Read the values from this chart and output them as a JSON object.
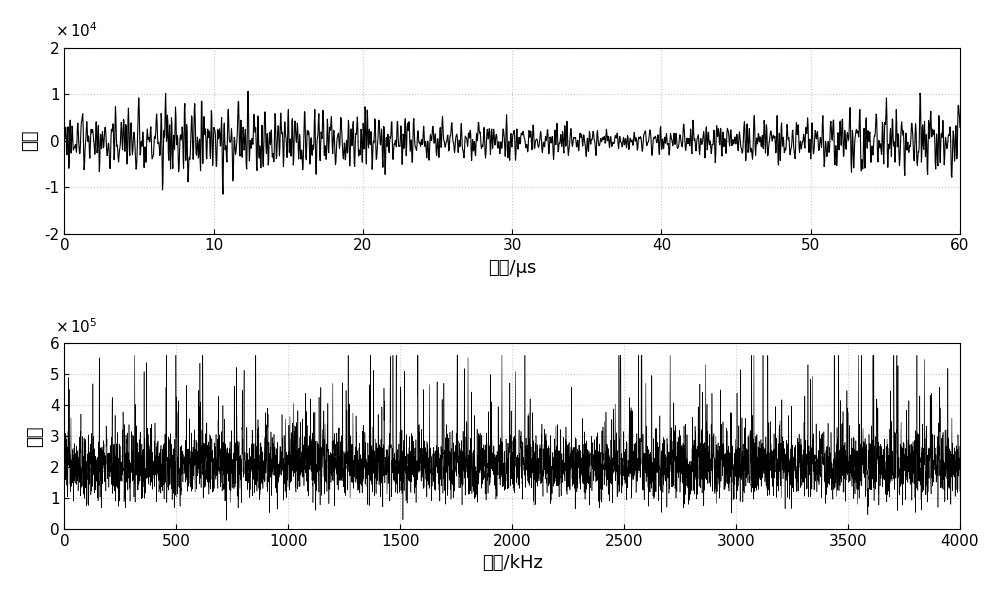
{
  "top_plot": {
    "xlabel": "时间/μs",
    "ylabel": "幅度",
    "xlim": [
      0,
      60
    ],
    "ylim_actual": [
      -20000,
      20000
    ],
    "ytick_vals": [
      -20000,
      -10000,
      0,
      10000,
      20000
    ],
    "ytick_labels": [
      "-2",
      "-1",
      "0",
      "1",
      "2"
    ],
    "xticks": [
      0,
      10,
      20,
      30,
      40,
      50,
      60
    ],
    "scale_text": "x 10",
    "scale_exp": "4",
    "line_color": "#000000",
    "linewidth": 0.8
  },
  "bottom_plot": {
    "xlabel": "频率/kHz",
    "ylabel": "幅度",
    "xlim": [
      0,
      4000
    ],
    "ylim_actual": [
      0,
      600000
    ],
    "ytick_vals": [
      0,
      100000,
      200000,
      300000,
      400000,
      500000,
      600000
    ],
    "ytick_labels": [
      "0",
      "1",
      "2",
      "3",
      "4",
      "5",
      "6"
    ],
    "xticks": [
      0,
      500,
      1000,
      1500,
      2000,
      2500,
      3000,
      3500,
      4000
    ],
    "scale_text": "x 10",
    "scale_exp": "5",
    "line_color": "#000000",
    "linewidth": 0.4
  },
  "fig_width": 10.0,
  "fig_height": 5.93,
  "dpi": 100,
  "background_color": "#ffffff",
  "grid_color": "#c8c8c8",
  "grid_linestyle": ":",
  "grid_linewidth": 0.8,
  "font_size_label": 13,
  "font_size_tick": 11,
  "font_size_scale": 11
}
